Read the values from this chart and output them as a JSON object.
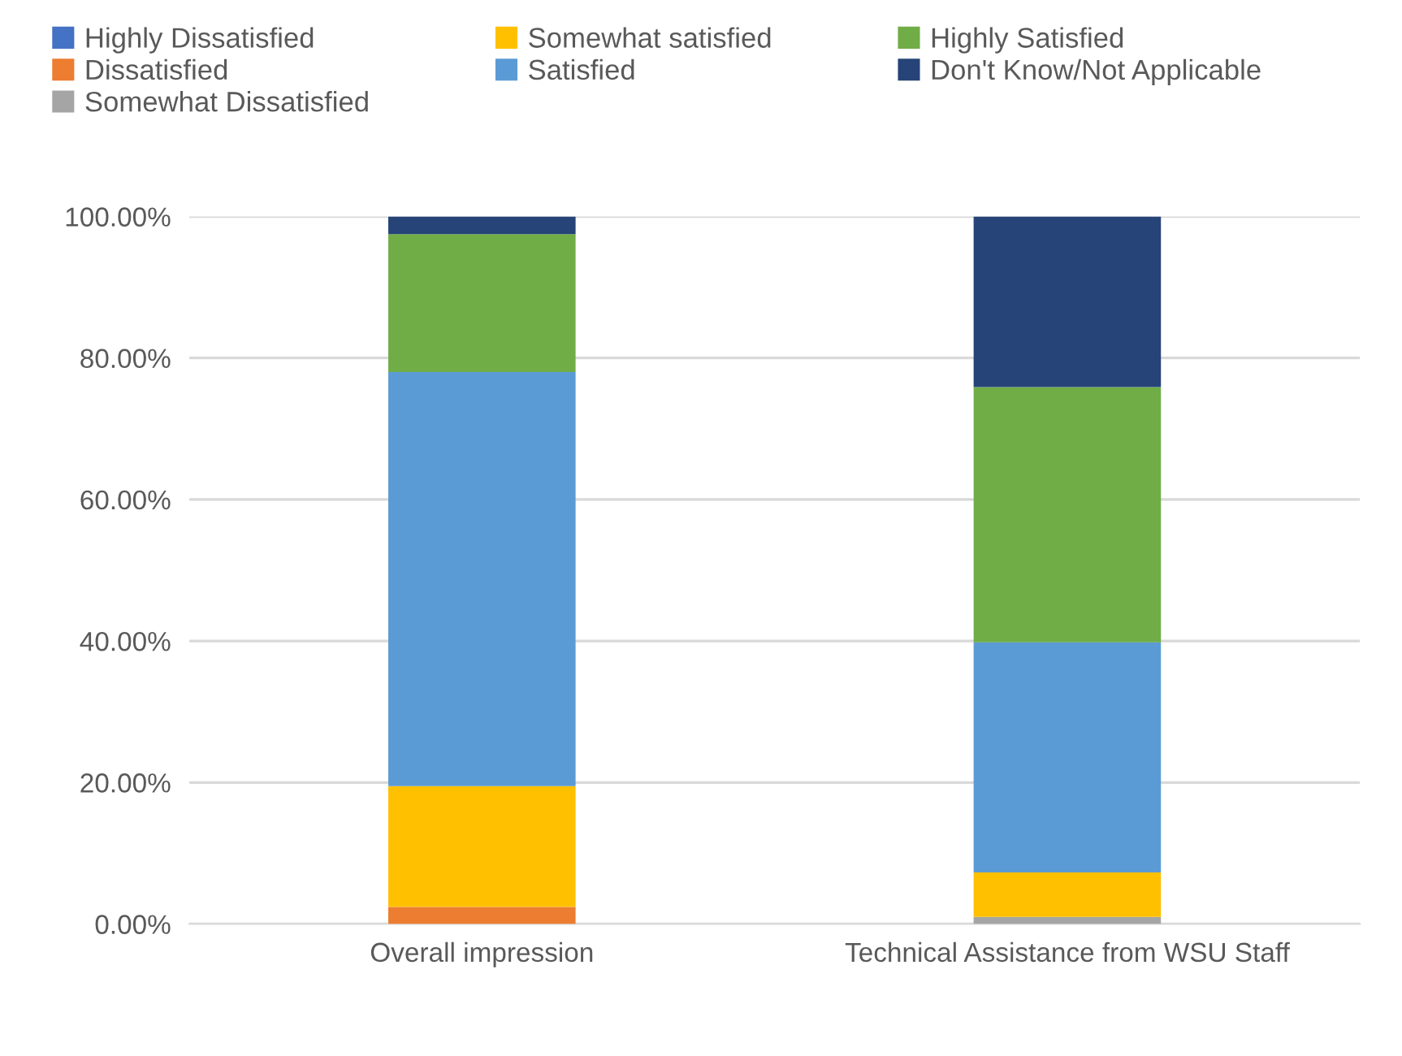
{
  "chart_data": {
    "type": "bar",
    "stacked": true,
    "categories": [
      "Overall impression",
      "Technical Assistance from WSU Staff"
    ],
    "series": [
      {
        "name": "Highly Dissatisfied",
        "color": "#4472c4",
        "values": [
          0,
          0
        ]
      },
      {
        "name": "Dissatisfied",
        "color": "#ed7d31",
        "values": [
          2.4,
          0
        ]
      },
      {
        "name": "Somewhat Dissatisfied",
        "color": "#a5a5a5",
        "values": [
          0,
          1.0
        ]
      },
      {
        "name": "Somewhat satisfied",
        "color": "#ffc000",
        "values": [
          17.1,
          6.3
        ]
      },
      {
        "name": "Satisfied",
        "color": "#5b9bd5",
        "values": [
          58.5,
          32.5
        ]
      },
      {
        "name": "Highly Satisfied",
        "color": "#70ad47",
        "values": [
          19.5,
          36.1
        ]
      },
      {
        "name": "Don't Know/Not Applicable",
        "color": "#264478",
        "values": [
          2.5,
          24.1
        ]
      }
    ],
    "ylim": [
      0,
      100
    ],
    "yticks": [
      {
        "value": 0,
        "label": "0.00%"
      },
      {
        "value": 20,
        "label": "20.00%"
      },
      {
        "value": 40,
        "label": "40.00%"
      },
      {
        "value": 60,
        "label": "60.00%"
      },
      {
        "value": 80,
        "label": "80.00%"
      },
      {
        "value": 100,
        "label": "100.00%"
      }
    ],
    "grid": "y",
    "legend": "top"
  }
}
